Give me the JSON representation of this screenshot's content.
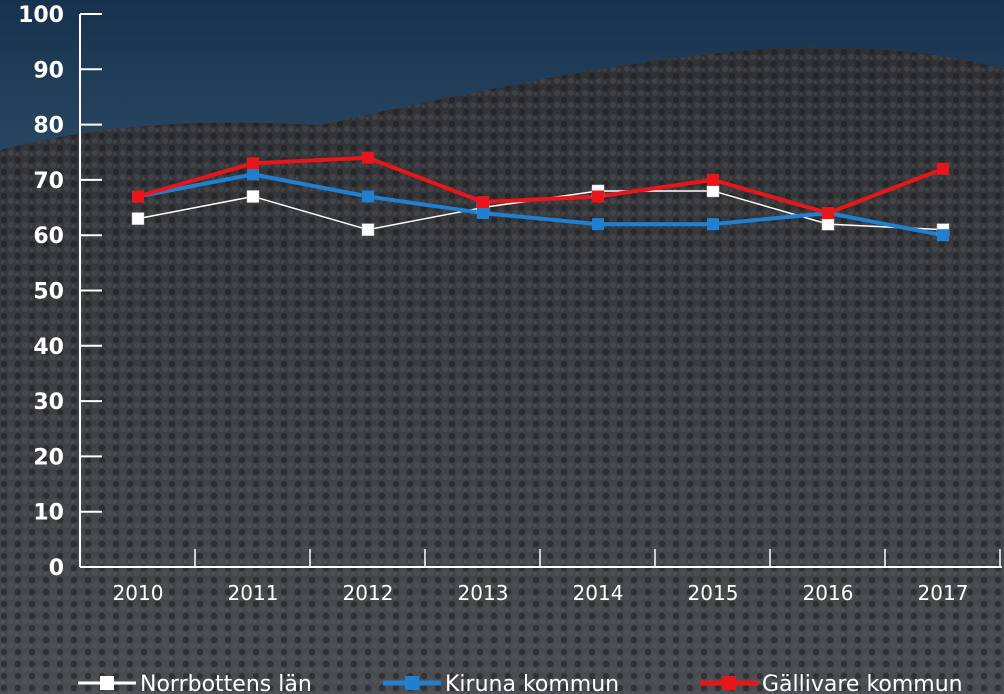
{
  "chart_data": {
    "type": "line",
    "categories": [
      "2010",
      "2011",
      "2012",
      "2013",
      "2014",
      "2015",
      "2016",
      "2017"
    ],
    "ylim": [
      0,
      100
    ],
    "yticks": [
      0,
      10,
      20,
      30,
      40,
      50,
      60,
      70,
      80,
      90,
      100
    ],
    "grid": false,
    "legend_position": "bottom",
    "series": [
      {
        "name": "Norrbottens län",
        "color": "#ffffff",
        "marker": "square",
        "values": [
          63,
          67,
          61,
          65,
          68,
          68,
          62,
          61
        ]
      },
      {
        "name": "Kiruna kommun",
        "color": "#1f7fd0",
        "marker": "square",
        "values": [
          67,
          71,
          67,
          64,
          62,
          62,
          64,
          60
        ]
      },
      {
        "name": "Gällivare kommun",
        "color": "#e8161b",
        "marker": "square",
        "values": [
          67,
          73,
          74,
          66,
          67,
          70,
          64,
          72
        ]
      }
    ]
  }
}
